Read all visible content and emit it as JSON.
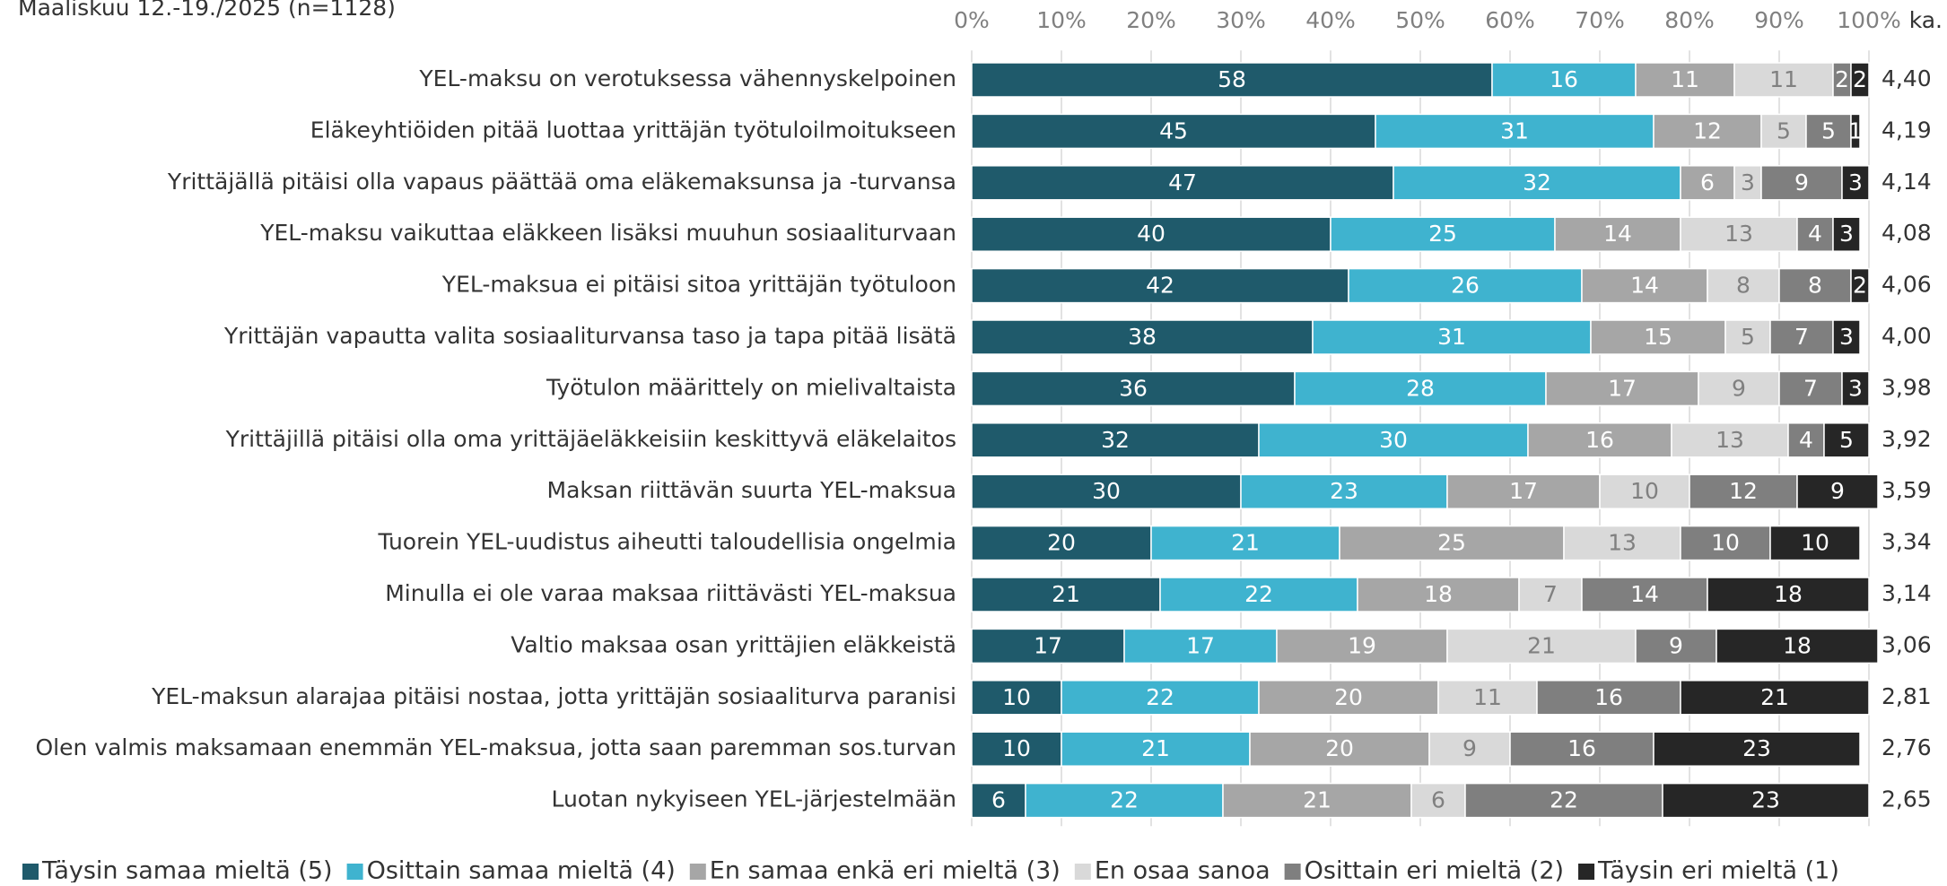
{
  "chart_data": {
    "type": "bar",
    "orientation": "horizontal",
    "stacked": true,
    "subtitle": "Maaliskuu 12.-19./2025 (n=1128)",
    "average_title": "ka.",
    "categories": [
      "YEL-maksu on verotuksessa vähennyskelpoinen",
      "Eläkeyhtiöiden pitää luottaa yrittäjän työtuloilmoitukseen",
      "Yrittäjällä pitäisi olla vapaus päättää oma eläkemaksunsa ja -turvansa",
      "YEL-maksu vaikuttaa eläkkeen lisäksi muuhun sosiaaliturvaan",
      "YEL-maksua ei pitäisi sitoa yrittäjän työtuloon",
      "Yrittäjän vapautta valita sosiaaliturvansa taso ja tapa pitää lisätä",
      "Työtulon määrittely on mielivaltaista",
      "Yrittäjillä pitäisi olla oma yrittäjäeläkkeisiin keskittyvä eläkelaitos",
      "Maksan riittävän suurta YEL-maksua",
      "Tuorein YEL-uudistus aiheutti taloudellisia ongelmia",
      "Minulla ei ole varaa maksaa riittävästi YEL-maksua",
      "Valtio maksaa osan yrittäjien eläkkeistä",
      "YEL-maksun alarajaa pitäisi nostaa, jotta yrittäjän sosiaaliturva paranisi",
      "Olen valmis maksamaan enemmän YEL-maksua, jotta saan paremman sos.turvan",
      "Luotan nykyiseen YEL-järjestelmään"
    ],
    "averages": [
      "4,40",
      "4,19",
      "4,14",
      "4,08",
      "4,06",
      "4,00",
      "3,98",
      "3,92",
      "3,59",
      "3,34",
      "3,14",
      "3,06",
      "2,81",
      "2,76",
      "2,65"
    ],
    "series": [
      {
        "name": "Täysin samaa mieltä (5)",
        "color": "#1f5a6b",
        "label_color": "#ffffff",
        "values": [
          58,
          45,
          47,
          40,
          42,
          38,
          36,
          32,
          30,
          20,
          21,
          17,
          10,
          10,
          6
        ]
      },
      {
        "name": "Osittain samaa mieltä (4)",
        "color": "#3fb3cf",
        "label_color": "#ffffff",
        "values": [
          16,
          31,
          32,
          25,
          26,
          31,
          28,
          30,
          23,
          21,
          22,
          17,
          22,
          21,
          22
        ]
      },
      {
        "name": "En samaa enkä eri mieltä (3)",
        "color": "#a6a6a6",
        "label_color": "#ffffff",
        "values": [
          11,
          12,
          6,
          14,
          14,
          15,
          17,
          16,
          17,
          25,
          18,
          19,
          20,
          20,
          21
        ]
      },
      {
        "name": "En osaa sanoa",
        "color": "#d9d9d9",
        "label_color": "#808080",
        "values": [
          11,
          5,
          3,
          13,
          8,
          5,
          9,
          13,
          10,
          13,
          7,
          21,
          11,
          9,
          6
        ]
      },
      {
        "name": "Osittain eri mieltä (2)",
        "color": "#7f7f7f",
        "label_color": "#ffffff",
        "values": [
          2,
          5,
          9,
          4,
          8,
          7,
          7,
          4,
          12,
          10,
          14,
          9,
          16,
          16,
          22
        ]
      },
      {
        "name": "Täysin eri mieltä (1)",
        "color": "#262626",
        "label_color": "#ffffff",
        "values": [
          2,
          1,
          3,
          3,
          2,
          3,
          3,
          5,
          9,
          10,
          18,
          18,
          21,
          23,
          23
        ]
      }
    ],
    "xlim": [
      0,
      100
    ],
    "xticks": [
      {
        "value": 0,
        "label": "0%"
      },
      {
        "value": 10,
        "label": "10%"
      },
      {
        "value": 20,
        "label": "20%"
      },
      {
        "value": 30,
        "label": "30%"
      },
      {
        "value": 40,
        "label": "40%"
      },
      {
        "value": 50,
        "label": "50%"
      },
      {
        "value": 60,
        "label": "60%"
      },
      {
        "value": 70,
        "label": "70%"
      },
      {
        "value": 80,
        "label": "80%"
      },
      {
        "value": 90,
        "label": "90%"
      },
      {
        "value": 100,
        "label": "100%"
      }
    ],
    "grid": true,
    "legend": "bottom"
  }
}
